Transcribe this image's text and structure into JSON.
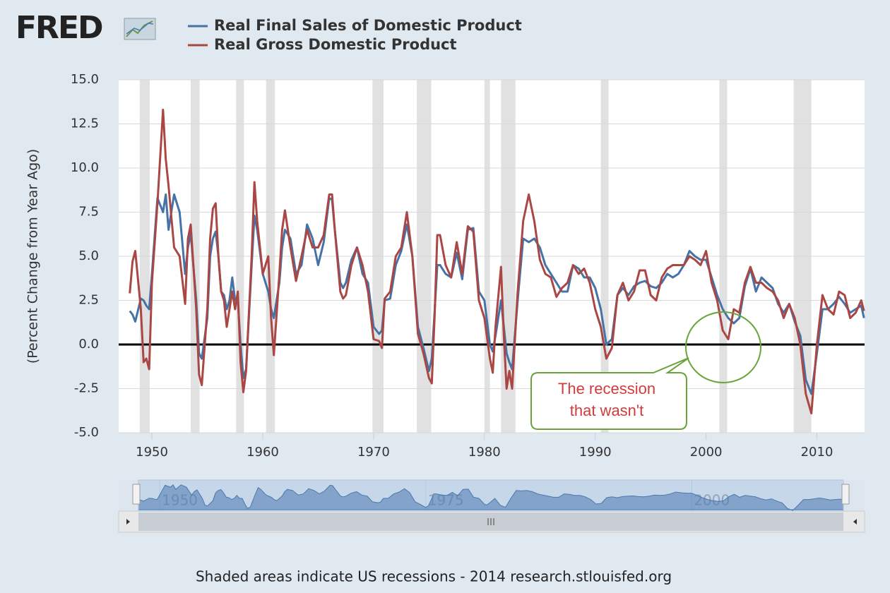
{
  "logo": "FRED",
  "footer": "Shaded areas indicate US recessions - 2014 research.stlouisfed.org",
  "chart_data": {
    "type": "line",
    "y_label": "(Percent Change from Year Ago)",
    "xlim": [
      1947.0,
      2014.3
    ],
    "xticks": [
      1950,
      1960,
      1970,
      1980,
      1990,
      2000,
      2010
    ],
    "ylim": [
      -5,
      15
    ],
    "yticks": [
      {
        "value": -5,
        "label": "-5.0"
      },
      -2.5,
      {
        "value": 0,
        "label": "0.0"
      },
      2.5,
      {
        "value": 5,
        "label": "5.0"
      },
      7.5,
      {
        "value": 10,
        "label": "10.0"
      },
      12.5,
      {
        "value": 15,
        "label": "15.0"
      }
    ],
    "grid": true,
    "recessions": [
      [
        1948.9,
        1949.8
      ],
      [
        1953.5,
        1954.3
      ],
      [
        1957.6,
        1958.3
      ],
      [
        1960.3,
        1961.1
      ],
      [
        1969.9,
        1970.9
      ],
      [
        1973.9,
        1975.2
      ],
      [
        1980.0,
        1980.5
      ],
      [
        1981.5,
        1982.8
      ],
      [
        1990.5,
        1991.2
      ],
      [
        2001.2,
        2001.9
      ],
      [
        2007.9,
        2009.5
      ]
    ],
    "navigator_xticks": [
      1950,
      1975,
      2000
    ],
    "annotation": [
      "The recession",
      "that wasn't"
    ],
    "x": [
      1948,
      1948.25,
      1948.5,
      1949,
      1949.25,
      1949.5,
      1949.75,
      1950,
      1950.5,
      1951,
      1951.25,
      1951.5,
      1952,
      1952.5,
      1953,
      1953.25,
      1953.5,
      1954,
      1954.25,
      1954.5,
      1955,
      1955.25,
      1955.5,
      1955.75,
      1956,
      1956.25,
      1956.5,
      1956.75,
      1957,
      1957.25,
      1957.5,
      1957.75,
      1958,
      1958.25,
      1958.5,
      1959,
      1959.25,
      1959.5,
      1960,
      1960.5,
      1960.75,
      1961,
      1961.5,
      1961.75,
      1962,
      1962.5,
      1963,
      1963.5,
      1964,
      1964.5,
      1965,
      1965.5,
      1966,
      1966.25,
      1966.5,
      1967,
      1967.25,
      1967.5,
      1968,
      1968.5,
      1969,
      1969.5,
      1970,
      1970.5,
      1970.75,
      1971,
      1971.5,
      1972,
      1972.5,
      1973,
      1973.5,
      1974,
      1974.5,
      1975,
      1975.25,
      1975.5,
      1975.75,
      1976,
      1976.5,
      1977,
      1977.5,
      1978,
      1978.5,
      1979,
      1979.5,
      1980,
      1980.5,
      1980.75,
      1981,
      1981.5,
      1981.75,
      1982,
      1982.25,
      1982.5,
      1983,
      1983.5,
      1984,
      1984.5,
      1985,
      1985.5,
      1986,
      1986.5,
      1987,
      1987.5,
      1988,
      1988.5,
      1989,
      1989.5,
      1990,
      1990.5,
      1991,
      1991.5,
      1992,
      1992.5,
      1993,
      1993.5,
      1994,
      1994.5,
      1995,
      1995.5,
      1996,
      1996.5,
      1997,
      1997.5,
      1998,
      1998.5,
      1999,
      1999.5,
      2000,
      2000.5,
      2001,
      2001.5,
      2002,
      2002.5,
      2003,
      2003.5,
      2004,
      2004.5,
      2005,
      2005.5,
      2006,
      2006.5,
      2007,
      2007.5,
      2008,
      2008.5,
      2009,
      2009.5,
      2010,
      2010.5,
      2011,
      2011.5,
      2012,
      2012.5,
      2013,
      2013.5,
      2014,
      2014.25
    ],
    "series": [
      {
        "name": "Real Final Sales of Domestic Product",
        "color": "#4572a7",
        "values": [
          1.9,
          1.7,
          1.3,
          2.6,
          2.5,
          2.2,
          2,
          4,
          8.3,
          7.5,
          8.5,
          6.5,
          8.5,
          7.5,
          4,
          5.5,
          6.3,
          2.5,
          -0.5,
          -0.8,
          1.5,
          5,
          6,
          6.4,
          5,
          3,
          2.8,
          2,
          2.5,
          3.8,
          2.5,
          2.5,
          0,
          -1.9,
          -1.4,
          4.5,
          7.3,
          6.5,
          4,
          3,
          2,
          1.5,
          3.5,
          5.5,
          6.5,
          6,
          4,
          4.5,
          6.8,
          6,
          4.5,
          5.8,
          8.3,
          8.2,
          6.5,
          3.5,
          3.2,
          3.5,
          4.8,
          5.5,
          4,
          3.5,
          1,
          0.6,
          0.8,
          2.5,
          2.6,
          4.5,
          5.3,
          6.8,
          5,
          1,
          -0.2,
          -1.5,
          -0.8,
          1.8,
          4.5,
          4.5,
          4,
          3.8,
          5.2,
          3.7,
          6.5,
          6.6,
          3,
          2.5,
          0,
          -0.4,
          0.5,
          2.5,
          1,
          -0.5,
          -1,
          -1.4,
          2.5,
          6,
          5.8,
          6,
          5.5,
          4.5,
          4,
          3.5,
          3,
          3,
          4.5,
          4.3,
          3.8,
          3.8,
          3.2,
          2,
          0,
          0.3,
          2.8,
          3.2,
          2.8,
          3.3,
          3.5,
          3.6,
          3.3,
          3.2,
          3.5,
          4,
          3.8,
          4,
          4.5,
          5.3,
          5,
          4.8,
          4.8,
          3.8,
          2.8,
          2,
          1.5,
          1.2,
          1.5,
          3.3,
          4.3,
          3,
          3.8,
          3.5,
          3.2,
          2.3,
          1.8,
          2.3,
          1.3,
          0.5,
          -2,
          -2.8,
          -0.5,
          2,
          2,
          2.3,
          2.7,
          2.3,
          1.8,
          2,
          2.2,
          1.5
        ]
      },
      {
        "name": "Real Gross Domestic Product",
        "color": "#aa4643",
        "values": [
          2.9,
          4.7,
          5.3,
          2,
          -1,
          -0.8,
          -1.4,
          3.5,
          8,
          13.3,
          10.5,
          9,
          5.5,
          5,
          2.3,
          6,
          6.8,
          2,
          -1.7,
          -2.3,
          2,
          6,
          7.7,
          8,
          5,
          3,
          2.5,
          1,
          2,
          3,
          2,
          3,
          -1,
          -2.7,
          -1.5,
          5,
          9.2,
          7,
          4,
          5,
          1.5,
          -0.6,
          4,
          6.5,
          7.6,
          5.5,
          3.6,
          5,
          6.5,
          5.5,
          5.5,
          6.2,
          8.5,
          8.5,
          6.5,
          3,
          2.6,
          2.8,
          4.5,
          5.5,
          4.5,
          3,
          0.3,
          0.2,
          -0.2,
          2.6,
          3,
          5,
          5.5,
          7.5,
          5,
          0.6,
          -0.5,
          -1.9,
          -2.2,
          1.5,
          6.2,
          6.2,
          4.5,
          3.8,
          5.8,
          4,
          6.7,
          6.4,
          2.5,
          1.5,
          -0.8,
          -1.6,
          1,
          4.4,
          0.5,
          -2.5,
          -1.5,
          -2.5,
          3,
          7,
          8.5,
          7,
          4.8,
          4,
          3.8,
          2.7,
          3.2,
          3.5,
          4.5,
          4,
          4.3,
          3.5,
          2,
          1,
          -0.8,
          -0.2,
          2.8,
          3.5,
          2.5,
          3,
          4.2,
          4.2,
          2.8,
          2.5,
          3.8,
          4.3,
          4.5,
          4.5,
          4.5,
          5,
          4.8,
          4.5,
          5.3,
          3.5,
          2.5,
          0.8,
          0.3,
          2,
          1.8,
          3.5,
          4.4,
          3.5,
          3.5,
          3.2,
          3,
          2.5,
          1.5,
          2.3,
          1.5,
          0,
          -2.8,
          -3.9,
          0,
          2.8,
          2,
          1.7,
          3,
          2.8,
          1.5,
          1.8,
          2.5,
          1.9
        ]
      }
    ]
  }
}
